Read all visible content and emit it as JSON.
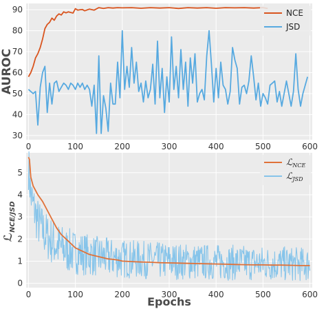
{
  "chart_data": [
    {
      "type": "line",
      "ylabel": "AUROC",
      "xlabel": "",
      "xlim": [
        -5,
        605
      ],
      "ylim": [
        28,
        93
      ],
      "xticks": [
        "0",
        "100",
        "200",
        "300",
        "400",
        "500",
        "600"
      ],
      "yticks": [
        "30",
        "40",
        "50",
        "60",
        "70",
        "80",
        "90"
      ],
      "grid": true,
      "legend_position": "top-right",
      "series": [
        {
          "name": "NCE",
          "color": "#d9541e",
          "x": [
            0,
            5,
            10,
            15,
            20,
            25,
            30,
            35,
            40,
            45,
            50,
            55,
            60,
            65,
            70,
            75,
            80,
            85,
            90,
            95,
            100,
            105,
            110,
            115,
            120,
            130,
            140,
            150,
            160,
            170,
            180,
            190,
            200,
            220,
            240,
            260,
            280,
            300,
            320,
            340,
            360,
            380,
            400,
            420,
            440,
            460,
            480,
            500,
            510
          ],
          "y": [
            58,
            60,
            63,
            67,
            69,
            72,
            76,
            81,
            83,
            84,
            86,
            85,
            87,
            88,
            87.5,
            89,
            88.5,
            89,
            88.7,
            88.4,
            90.5,
            89.8,
            90,
            90.1,
            89.5,
            90.3,
            89.8,
            91,
            90.6,
            91,
            90.8,
            91,
            90.9,
            91,
            90.7,
            91,
            90.8,
            91,
            90.6,
            91,
            90.8,
            91,
            90.7,
            91,
            90.9,
            91,
            90.8,
            91,
            90.6
          ]
        },
        {
          "name": "JSD",
          "color": "#56a9e0",
          "x": [
            0,
            10,
            15,
            20,
            25,
            30,
            35,
            40,
            45,
            50,
            55,
            60,
            65,
            70,
            75,
            80,
            85,
            90,
            95,
            100,
            105,
            110,
            115,
            120,
            125,
            130,
            135,
            140,
            145,
            150,
            155,
            160,
            165,
            170,
            175,
            180,
            185,
            190,
            195,
            200,
            205,
            210,
            215,
            220,
            225,
            230,
            235,
            240,
            245,
            250,
            255,
            260,
            265,
            270,
            275,
            280,
            285,
            290,
            295,
            300,
            305,
            310,
            315,
            320,
            325,
            330,
            335,
            340,
            345,
            350,
            355,
            360,
            365,
            370,
            375,
            380,
            385,
            390,
            395,
            400,
            405,
            410,
            415,
            420,
            425,
            430,
            435,
            440,
            445,
            450,
            455,
            460,
            465,
            470,
            475,
            480,
            485,
            490,
            495,
            500,
            505,
            510,
            515,
            520,
            525,
            530,
            535,
            540,
            545,
            550,
            555,
            560,
            565,
            570,
            575,
            580,
            585,
            590,
            595
          ],
          "y": [
            52,
            50,
            51,
            35,
            53,
            60,
            63,
            41,
            55,
            45,
            55,
            56,
            51,
            53,
            55,
            54,
            52,
            55,
            54,
            52,
            55,
            53,
            55,
            52,
            54,
            52,
            44,
            54,
            31,
            68,
            31,
            49,
            43,
            32,
            55,
            45,
            45,
            65,
            48,
            80,
            52,
            63,
            53,
            72,
            55,
            65,
            51,
            55,
            46,
            56,
            48,
            52,
            64,
            45,
            75,
            48,
            62,
            41,
            58,
            46,
            77,
            52,
            63,
            48,
            71,
            52,
            65,
            44,
            67,
            55,
            69,
            46,
            50,
            52,
            47,
            68,
            80,
            64,
            46,
            62,
            48,
            65,
            54,
            52,
            45,
            51,
            72,
            66,
            62,
            45,
            53,
            54,
            50,
            56,
            68,
            58,
            47,
            55,
            44,
            50,
            48,
            45,
            54,
            55,
            56,
            46,
            51,
            44,
            50,
            56,
            50,
            44,
            51,
            69,
            52,
            44,
            50,
            54,
            58
          ]
        }
      ]
    },
    {
      "type": "line",
      "ylabel": "ℒ",
      "ylabel_sub": "NCE/JSD",
      "xlabel": "Epochs",
      "xlim": [
        -5,
        605
      ],
      "ylim": [
        -0.2,
        5.9
      ],
      "xticks": [
        "0",
        "100",
        "200",
        "300",
        "400",
        "500",
        "600"
      ],
      "yticks": [
        "0",
        "1",
        "2",
        "3",
        "4",
        "5"
      ],
      "grid": true,
      "legend_position": "top-right",
      "series": [
        {
          "name": "ℒ",
          "name_sub": "NCE",
          "color": "#e07138",
          "x": [
            0,
            2,
            5,
            10,
            15,
            20,
            30,
            40,
            50,
            60,
            70,
            80,
            90,
            100,
            110,
            120,
            130,
            140,
            150,
            160,
            170,
            180,
            190,
            200,
            220,
            240,
            260,
            280,
            300,
            320,
            340,
            360,
            380,
            400,
            420,
            440,
            460,
            480,
            500,
            520,
            540,
            560,
            580,
            600
          ],
          "y": [
            5.7,
            5.6,
            4.8,
            4.4,
            4.2,
            4.0,
            3.7,
            3.3,
            2.9,
            2.5,
            2.2,
            2.0,
            1.8,
            1.6,
            1.5,
            1.4,
            1.3,
            1.25,
            1.2,
            1.15,
            1.1,
            1.08,
            1.05,
            1.0,
            0.98,
            0.96,
            0.95,
            0.93,
            0.92,
            0.91,
            0.9,
            0.89,
            0.88,
            0.87,
            0.86,
            0.85,
            0.84,
            0.83,
            0.83,
            0.82,
            0.82,
            0.81,
            0.8,
            0.8
          ]
        },
        {
          "name": "ℒ",
          "name_sub": "JSD",
          "color": "#86c4ea",
          "noise": true,
          "trend_x": [
            0,
            5,
            10,
            20,
            30,
            40,
            60,
            80,
            100,
            150,
            200,
            300,
            400,
            500,
            600
          ],
          "trend_y": [
            5.3,
            4.0,
            3.5,
            2.8,
            2.4,
            2.1,
            1.7,
            1.5,
            1.4,
            1.2,
            1.1,
            1.0,
            0.95,
            0.9,
            0.85
          ]
        }
      ]
    }
  ]
}
